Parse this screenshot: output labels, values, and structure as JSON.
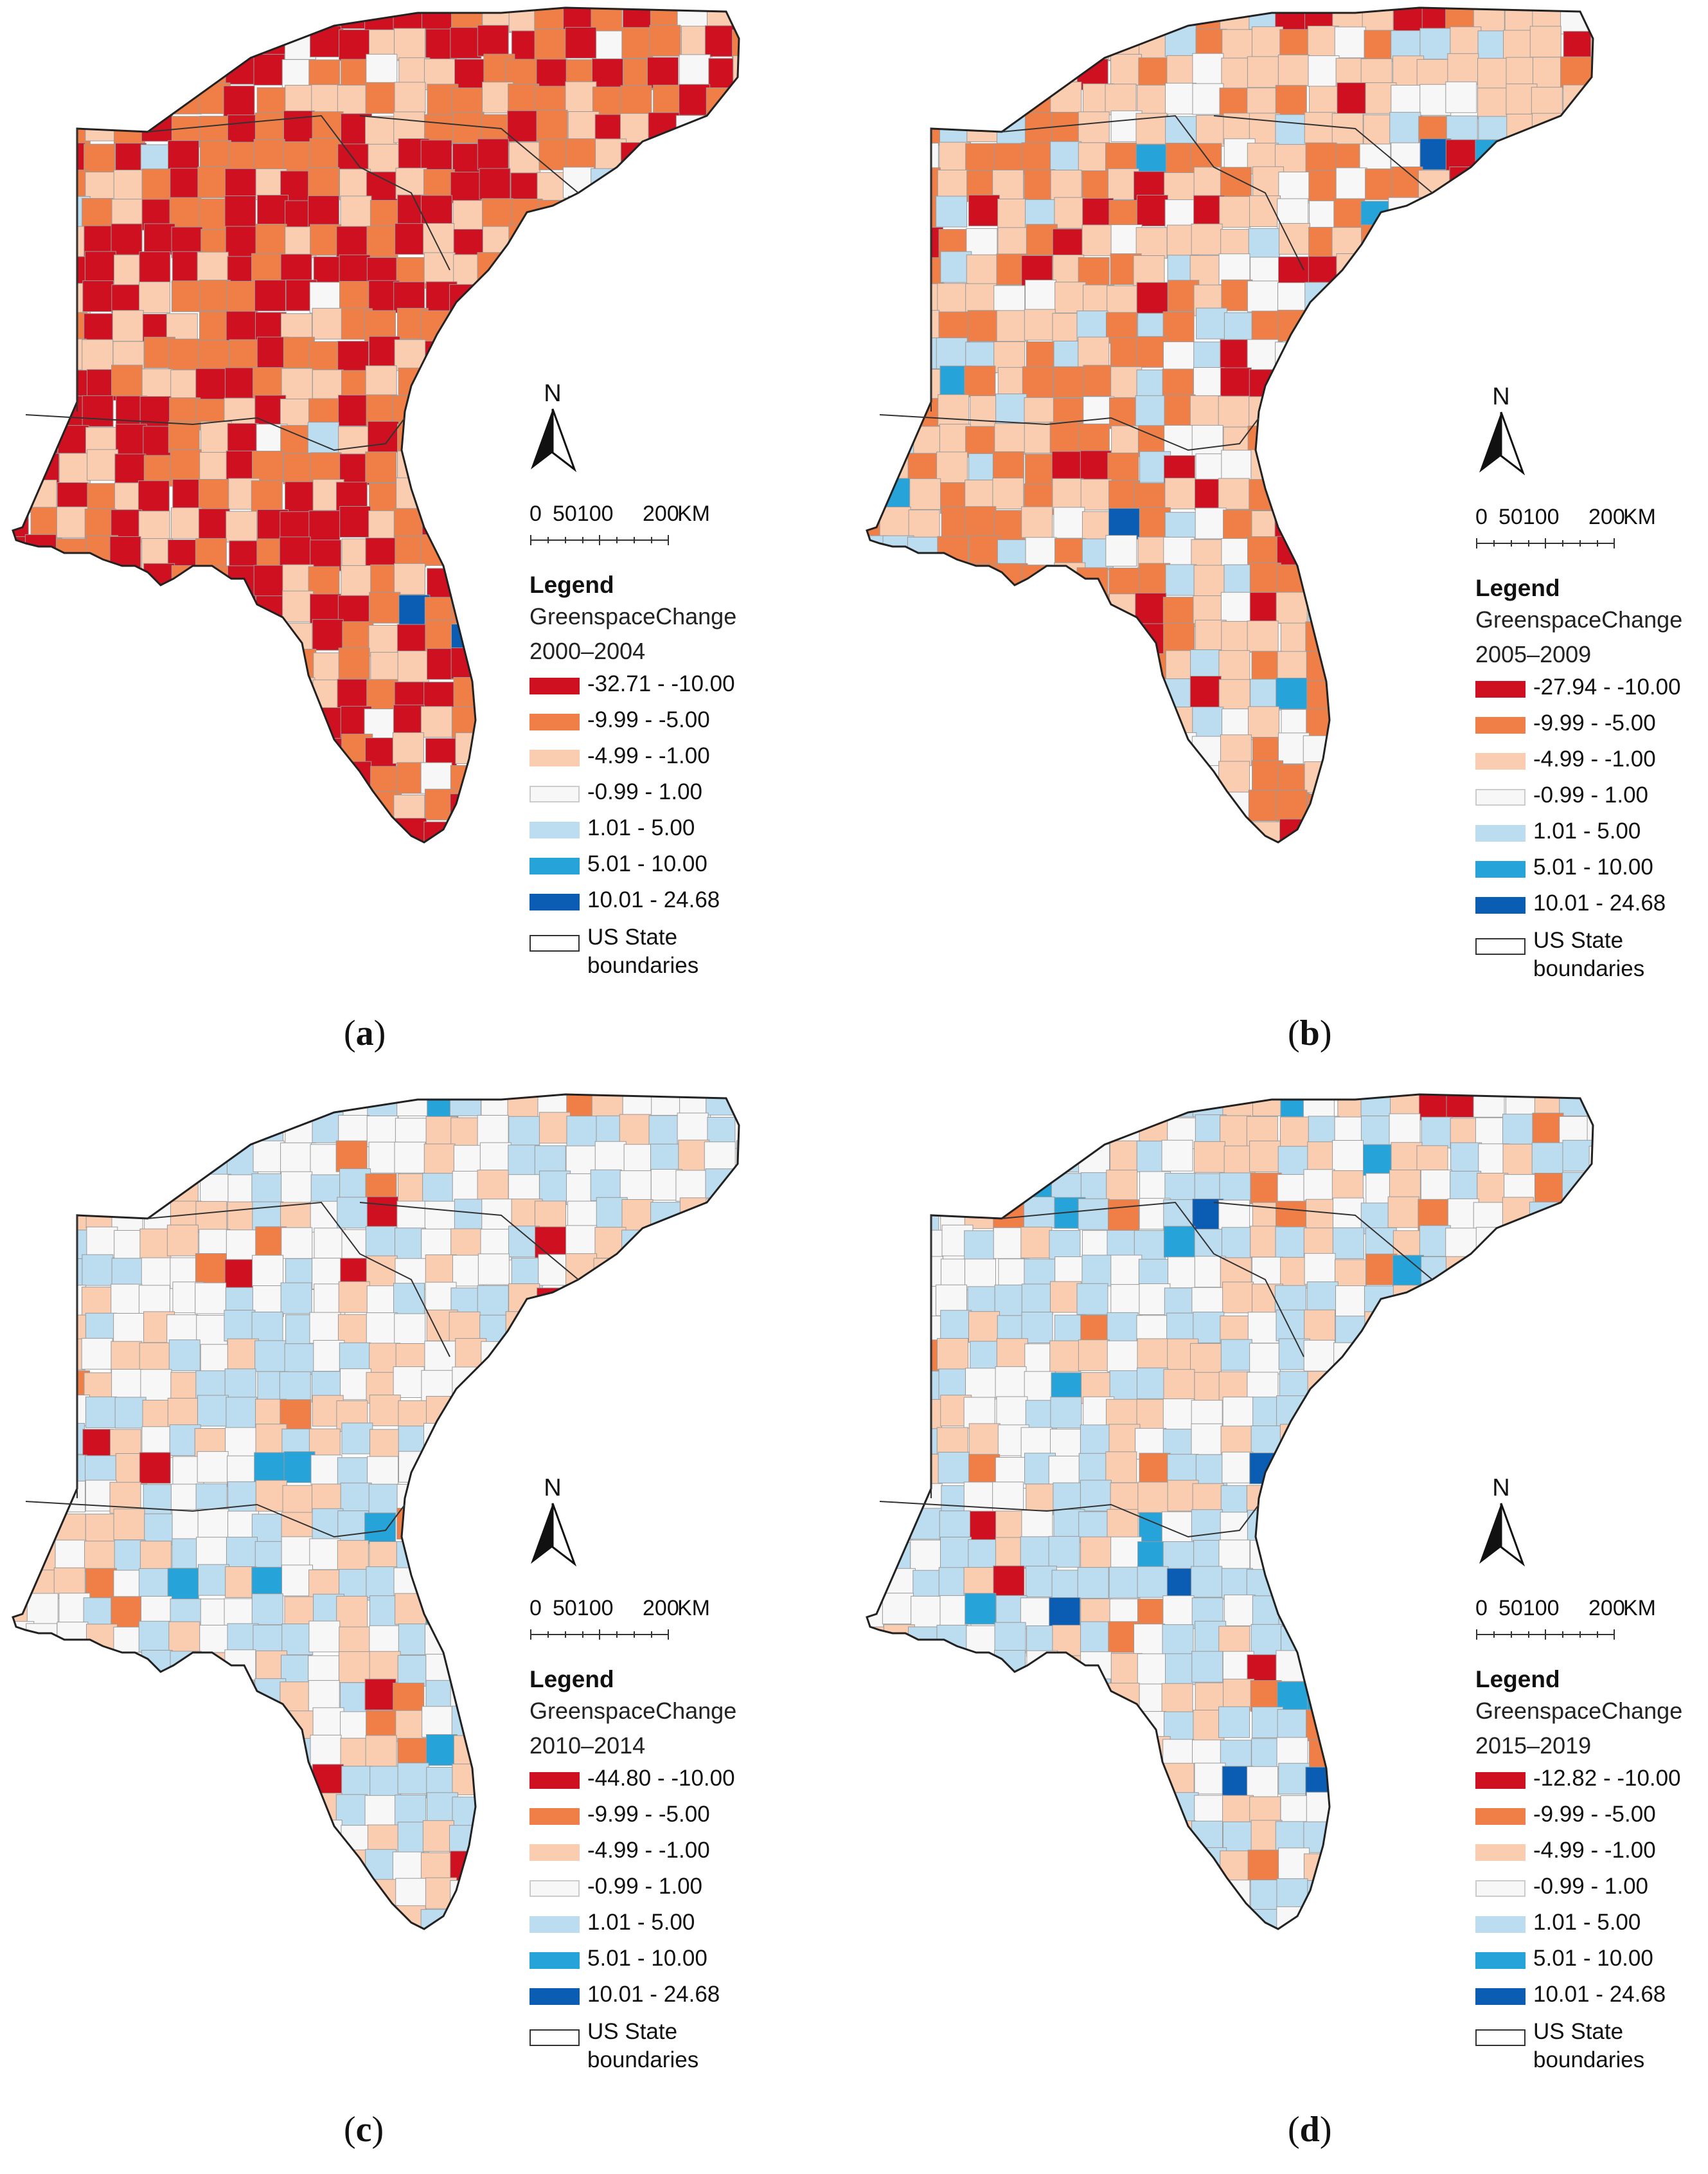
{
  "legend_common": {
    "title": "Legend",
    "subtitle": "GreenspaceChange",
    "boundary_label": "US State boundaries",
    "classes_fixed": [
      "-9.99 - -5.00",
      "-4.99 - -1.00",
      "-0.99 - 1.00",
      "1.01 - 5.00",
      "5.01 - 10.00",
      "10.01 - 24.68"
    ],
    "colors": [
      "#cf1020",
      "#f07f47",
      "#fbcdb0",
      "#f7f7f7",
      "#bcdcf0",
      "#26a3d8",
      "#0a5db3"
    ]
  },
  "north_letter": "N",
  "scale": {
    "labels": [
      "0",
      "50100",
      "200",
      "KM"
    ]
  },
  "panels": [
    {
      "id": "a",
      "caption": "a",
      "period": "2000–2004",
      "first_class": "-32.71 - -10.00"
    },
    {
      "id": "b",
      "caption": "b",
      "period": "2005–2009",
      "first_class": "-27.94 - -10.00"
    },
    {
      "id": "c",
      "caption": "c",
      "period": "2010–2014",
      "first_class": "-44.80 - -10.00"
    },
    {
      "id": "d",
      "caption": "d",
      "period": "2015–2019",
      "first_class": "-12.82 - -10.00"
    }
  ]
}
